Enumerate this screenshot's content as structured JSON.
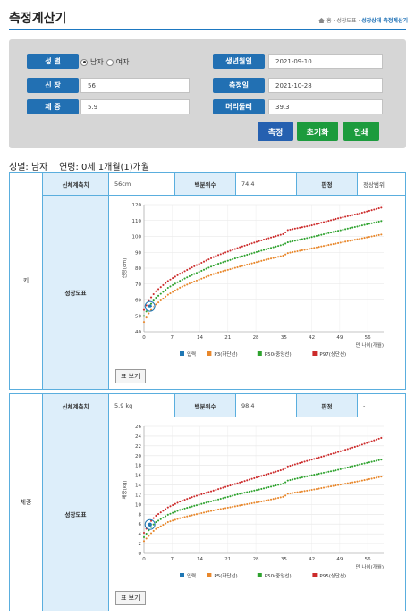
{
  "header": {
    "title": "측정계산기",
    "breadcrumb_home": "홈",
    "breadcrumb_mid": "· 성장도표 ·",
    "breadcrumb_current": "성장상태 측정계산기"
  },
  "form": {
    "gender_label": "성 별",
    "gender_male": "남자",
    "gender_female": "여자",
    "gender_selected": "남자",
    "height_label": "신 장",
    "height_value": "56",
    "weight_label": "체 중",
    "weight_value": "5.9",
    "birth_label": "생년월일",
    "birth_value": "2021-09-10",
    "measure_label": "측정일",
    "measure_value": "2021-10-28",
    "head_label": "머리둘레",
    "head_value": "39.3"
  },
  "buttons": {
    "measure": "측정",
    "reset": "초기화",
    "print": "인쇄"
  },
  "summary": {
    "gender": "성별: 남자",
    "age": "연령: 0세 1개월(1)개월"
  },
  "height_panel": {
    "side": "키",
    "measured_label": "신체계측치",
    "measured_value": "56cm",
    "percentile_label": "백분위수",
    "percentile_value": "74.4",
    "judgement_label": "판정",
    "judgement_value": "정상범위",
    "chart_label": "성장도표",
    "table_button": "표 보기"
  },
  "weight_panel": {
    "side": "체중",
    "measured_label": "신체계측치",
    "measured_value": "5.9 kg",
    "percentile_label": "백분위수",
    "percentile_value": "98.4",
    "judgement_label": "판정",
    "judgement_value": "-",
    "chart_label": "성장도표",
    "table_button": "표 보기"
  },
  "colors": {
    "primary_blue": "#2270b3",
    "green": "#1c9b3d",
    "p_low": "#e8872b",
    "p_mid": "#2ea22e",
    "p_high": "#cc2b2b",
    "input_marker": "#1f77b4"
  },
  "chart_data": [
    {
      "type": "scatter",
      "ylabel": "신장(cm)",
      "xlabel": "만 나이(개월)",
      "ylim": [
        40,
        120
      ],
      "yticks": [
        40,
        50,
        60,
        70,
        80,
        90,
        100,
        110,
        120
      ],
      "xlim": [
        0,
        60
      ],
      "xticks": [
        0,
        7,
        14,
        21,
        28,
        35,
        42,
        49,
        56
      ],
      "legend": [
        "입력",
        "P3(하단선)",
        "P50(중앙선)",
        "P97(상단선)"
      ],
      "series": [
        {
          "name": "입력",
          "points": [
            [
              1.5,
              56
            ]
          ]
        },
        {
          "name": "P3(하단선)",
          "x": [
            0,
            1,
            2,
            3,
            6,
            9,
            12,
            18,
            24,
            30,
            35,
            36,
            42,
            48,
            54,
            60
          ],
          "values": [
            46.1,
            50.8,
            54.4,
            57.3,
            63.3,
            67.7,
            71.0,
            76.9,
            81.0,
            85.0,
            88.0,
            89.5,
            92.5,
            95.5,
            98.5,
            101.5
          ]
        },
        {
          "name": "P50(중앙선)",
          "x": [
            0,
            1,
            2,
            3,
            6,
            9,
            12,
            18,
            24,
            30,
            35,
            36,
            42,
            48,
            54,
            60
          ],
          "values": [
            49.9,
            54.7,
            58.4,
            61.4,
            67.6,
            72.0,
            75.7,
            82.3,
            87.1,
            91.5,
            95.0,
            96.3,
            99.6,
            103.2,
            106.6,
            110.0
          ]
        },
        {
          "name": "P97(상단선)",
          "x": [
            0,
            1,
            2,
            3,
            6,
            9,
            12,
            18,
            24,
            30,
            35,
            36,
            42,
            48,
            54,
            60
          ],
          "values": [
            53.7,
            58.6,
            62.4,
            65.5,
            71.9,
            76.5,
            80.5,
            87.7,
            93.2,
            98.0,
            101.6,
            104.0,
            107.0,
            111.0,
            114.5,
            118.5
          ]
        }
      ]
    },
    {
      "type": "scatter",
      "ylabel": "체중(kg)",
      "xlabel": "만 나이(개월)",
      "ylim": [
        0,
        26
      ],
      "yticks": [
        0,
        2,
        4,
        6,
        8,
        10,
        12,
        14,
        16,
        18,
        20,
        22,
        24,
        26
      ],
      "xlim": [
        0,
        60
      ],
      "xticks": [
        0,
        7,
        14,
        21,
        28,
        35,
        42,
        49,
        56
      ],
      "legend": [
        "입력",
        "P5(하단선)",
        "P50(중앙선)",
        "P95(상단선)"
      ],
      "series": [
        {
          "name": "입력",
          "points": [
            [
              1.5,
              5.9
            ]
          ]
        },
        {
          "name": "P5(하단선)",
          "x": [
            0,
            1,
            2,
            3,
            6,
            9,
            12,
            18,
            24,
            30,
            35,
            36,
            42,
            48,
            54,
            60
          ],
          "values": [
            2.5,
            3.4,
            4.3,
            5.0,
            6.4,
            7.2,
            7.8,
            8.9,
            9.8,
            10.7,
            11.6,
            12.2,
            13.0,
            13.9,
            14.8,
            15.8
          ]
        },
        {
          "name": "P50(중앙선)",
          "x": [
            0,
            1,
            2,
            3,
            6,
            9,
            12,
            18,
            24,
            30,
            35,
            36,
            42,
            48,
            54,
            60
          ],
          "values": [
            3.3,
            4.5,
            5.6,
            6.4,
            7.9,
            8.9,
            9.6,
            10.9,
            12.2,
            13.3,
            14.3,
            14.9,
            16.0,
            17.0,
            18.2,
            19.3
          ]
        },
        {
          "name": "P95(상단선)",
          "x": [
            0,
            1,
            2,
            3,
            6,
            9,
            12,
            18,
            24,
            30,
            35,
            36,
            42,
            48,
            54,
            60
          ],
          "values": [
            4.2,
            5.6,
            6.9,
            7.7,
            9.4,
            10.6,
            11.5,
            13.0,
            14.5,
            16.0,
            17.2,
            17.8,
            19.2,
            20.6,
            22.1,
            23.8
          ]
        }
      ]
    }
  ]
}
